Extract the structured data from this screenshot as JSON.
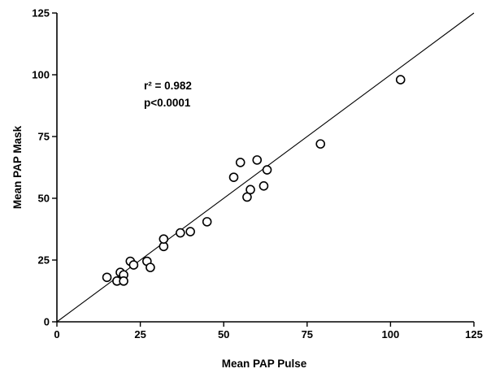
{
  "chart_data": {
    "type": "scatter",
    "xlabel": "Mean PAP Pulse",
    "ylabel": "Mean PAP Mask",
    "xlim": [
      0,
      125
    ],
    "ylim": [
      0,
      125
    ],
    "xticks": [
      "0",
      "25",
      "50",
      "75",
      "100",
      "125"
    ],
    "yticks": [
      "0",
      "25",
      "50",
      "75",
      "100",
      "125"
    ],
    "grid": false,
    "annotation": {
      "r2_label": "r² = 0.982",
      "p_label": "p<0.0001"
    },
    "fit_line": {
      "x": [
        0,
        125
      ],
      "y": [
        0,
        125
      ]
    },
    "series": [
      {
        "points": [
          {
            "x": 15,
            "y": 18
          },
          {
            "x": 18,
            "y": 16.5
          },
          {
            "x": 19,
            "y": 20
          },
          {
            "x": 20,
            "y": 19
          },
          {
            "x": 20,
            "y": 16.5
          },
          {
            "x": 22,
            "y": 24.5
          },
          {
            "x": 23,
            "y": 23
          },
          {
            "x": 27,
            "y": 24.5
          },
          {
            "x": 28,
            "y": 22
          },
          {
            "x": 32,
            "y": 30.5
          },
          {
            "x": 32,
            "y": 33.5
          },
          {
            "x": 37,
            "y": 36
          },
          {
            "x": 40,
            "y": 36.5
          },
          {
            "x": 45,
            "y": 40.5
          },
          {
            "x": 53,
            "y": 58.5
          },
          {
            "x": 55,
            "y": 64.5
          },
          {
            "x": 57,
            "y": 50.5
          },
          {
            "x": 58,
            "y": 53.5
          },
          {
            "x": 60,
            "y": 65.5
          },
          {
            "x": 62,
            "y": 55
          },
          {
            "x": 63,
            "y": 61.5
          },
          {
            "x": 79,
            "y": 72
          },
          {
            "x": 103,
            "y": 98
          }
        ]
      }
    ]
  }
}
